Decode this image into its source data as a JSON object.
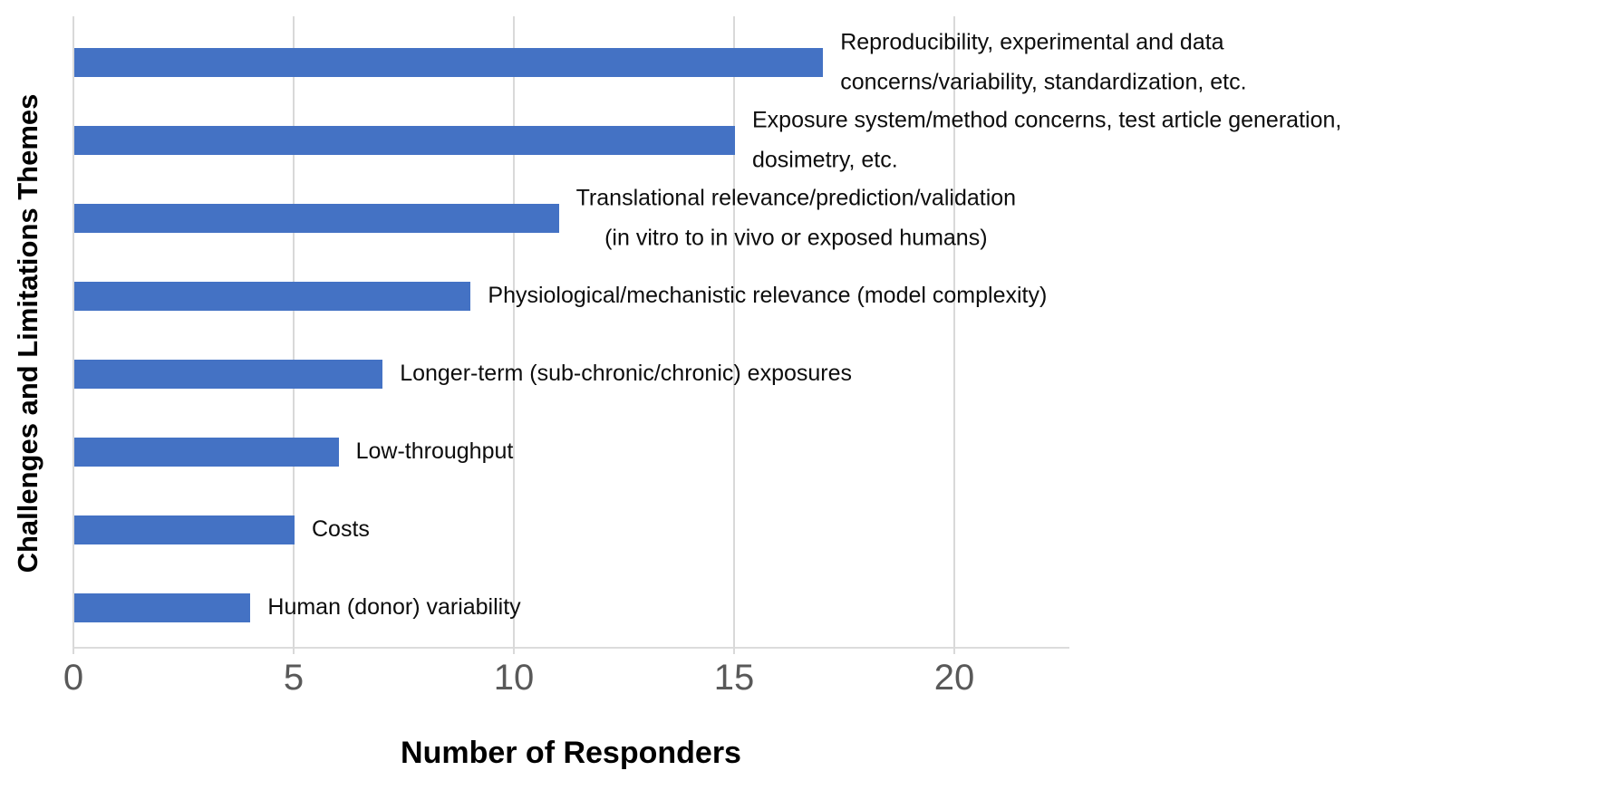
{
  "chart_data": {
    "type": "bar",
    "orientation": "horizontal",
    "title": "",
    "xlabel": "Number of Responders",
    "ylabel": "Challenges and Limitations Themes",
    "categories": [
      "Reproducibility, experimental and data\nconcerns/variability, standardization, etc.",
      "Exposure system/method concerns, test article generation,\ndosimetry, etc.",
      "Translational relevance/prediction/validation\n(in vitro to in vivo or exposed humans)",
      "Physiological/mechanistic relevance (model complexity)",
      "Longer-term (sub-chronic/chronic) exposures",
      "Low-throughput",
      "Costs",
      "Human (donor) variability"
    ],
    "values": [
      17,
      15,
      11,
      9,
      7,
      6,
      5,
      4
    ],
    "x_ticks": [
      0,
      5,
      10,
      15,
      20
    ],
    "xlim": [
      0,
      22.6
    ],
    "grid": "vertical major gridlines only",
    "legend": "none",
    "label_align": [
      "left",
      "left",
      "center",
      "left",
      "left",
      "left",
      "left",
      "left"
    ],
    "bar_color": "#4472C4",
    "gridline_color": "#D9D9D9",
    "tick_label_color": "#595959",
    "category_label_color": "#0d0d0d",
    "axis_title_color": "#000000"
  }
}
